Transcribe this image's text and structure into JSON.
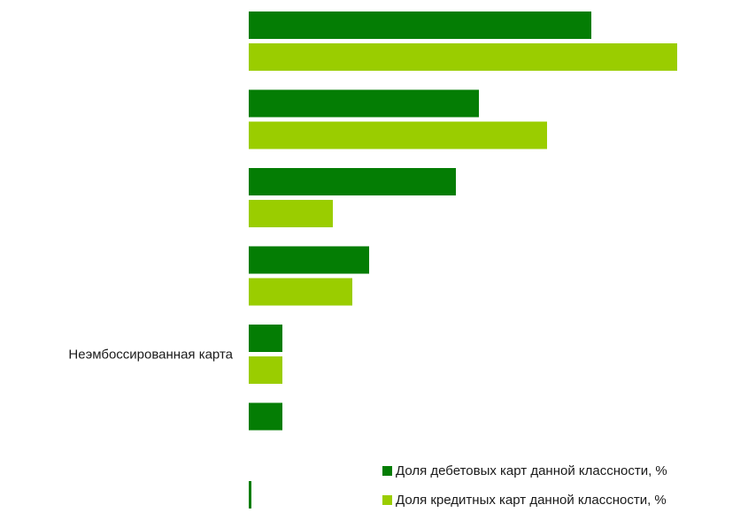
{
  "chart_data": {
    "type": "bar",
    "orientation": "horizontal",
    "categories": [
      "",
      "",
      "",
      "",
      "Неэмбоссированная карта",
      "",
      ""
    ],
    "series": [
      {
        "name": "Доля дебетовых карт данной классности, %",
        "color": "#047d04",
        "values": [
          38.7,
          26.0,
          23.4,
          13.6,
          3.8,
          3.8,
          0.2
        ]
      },
      {
        "name": "Доля кредитных карт данной классности, %",
        "color": "#9acd00",
        "values": [
          48.4,
          33.7,
          9.5,
          11.7,
          3.8,
          0,
          0
        ]
      }
    ],
    "xlim": [
      0,
      50
    ],
    "grid": false,
    "legend_position": "bottom-right"
  }
}
